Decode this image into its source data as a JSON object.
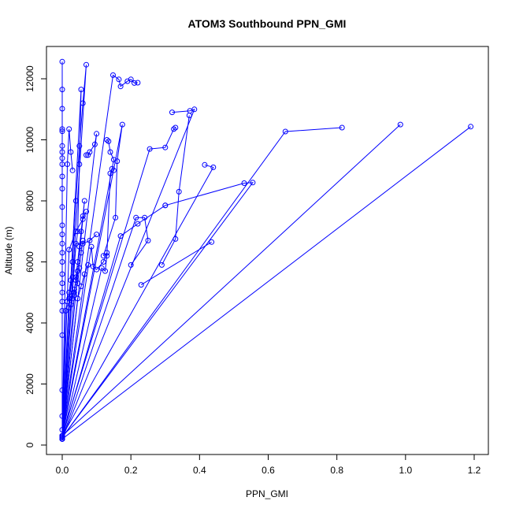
{
  "chart_data": {
    "type": "line",
    "title": "ATOM3 Southbound PPN_GMI",
    "xlabel": "PPN_GMI",
    "ylabel": "Altitude (m)",
    "xlim": [
      0.0,
      1.2
    ],
    "ylim": [
      0,
      12000
    ],
    "x_ticks": [
      "0.0",
      "0.2",
      "0.4",
      "0.6",
      "0.8",
      "1.0",
      "1.2"
    ],
    "y_ticks": [
      "0",
      "2000",
      "4000",
      "6000",
      "8000",
      "10000",
      "12000"
    ],
    "x_tick_values": [
      0.0,
      0.2,
      0.4,
      0.6,
      0.8,
      1.0,
      1.2
    ],
    "y_tick_values": [
      0,
      2000,
      4000,
      6000,
      8000,
      10000,
      12000
    ],
    "grid": false,
    "color": "#0000ff",
    "marker": "open-circle",
    "series": [
      {
        "x": [
          0.0,
          0.0,
          0.0,
          0.0,
          0.0,
          0.0,
          0.0,
          0.0,
          0.0,
          0.0,
          0.0,
          0.0,
          0.0,
          0.0,
          0.0,
          0.0,
          0.0,
          0.0,
          0.0,
          0.0,
          0.0,
          0.0,
          0.0,
          0.0,
          0.0,
          0.0,
          0.0,
          0.0
        ],
        "y": [
          12560,
          11650,
          11020,
          10350,
          10280,
          9800,
          9600,
          9400,
          9200,
          8800,
          8400,
          7800,
          7200,
          6900,
          6600,
          6300,
          6000,
          5600,
          5300,
          5000,
          4700,
          4400,
          3600,
          1800,
          950,
          500,
          300,
          200
        ]
      },
      {
        "x": [
          0.0,
          0.07,
          0.06,
          0.05,
          0.04,
          0.03,
          0.02,
          0.0
        ],
        "y": [
          200,
          12460,
          11200,
          9800,
          8000,
          6000,
          4500,
          200
        ]
      },
      {
        "x": [
          0.0,
          0.055,
          0.05,
          0.045,
          0.03,
          0.02,
          0.0
        ],
        "y": [
          250,
          11650,
          9200,
          7000,
          5500,
          4800,
          250
        ]
      },
      {
        "x": [
          0.0,
          0.148,
          0.165,
          0.17,
          0.19,
          0.2,
          0.21,
          0.22
        ],
        "y": [
          300,
          12120,
          11980,
          11750,
          11920,
          11980,
          11860,
          11870
        ]
      },
      {
        "x": [
          0.0,
          0.385,
          0.372,
          0.32
        ],
        "y": [
          200,
          11000,
          10950,
          10900
        ]
      },
      {
        "x": [
          0.0,
          0.65,
          0.815
        ],
        "y": [
          250,
          10270,
          10400
        ]
      },
      {
        "x": [
          0.0,
          0.985
        ],
        "y": [
          300,
          10500
        ]
      },
      {
        "x": [
          0.0,
          1.19
        ],
        "y": [
          200,
          10430
        ]
      },
      {
        "x": [
          0.0,
          0.44,
          0.415
        ],
        "y": [
          300,
          9100,
          9180
        ]
      },
      {
        "x": [
          0.0,
          0.555,
          0.53,
          0.3
        ],
        "y": [
          250,
          8600,
          8580,
          7850
        ]
      },
      {
        "x": [
          0.23,
          0.435
        ],
        "y": [
          5250,
          6650
        ]
      },
      {
        "x": [
          0.29,
          0.33,
          0.34,
          0.37
        ],
        "y": [
          5900,
          6750,
          8300,
          10800
        ]
      },
      {
        "x": [
          0.0,
          0.255,
          0.3,
          0.325,
          0.33
        ],
        "y": [
          300,
          9700,
          9750,
          10350,
          10400
        ]
      },
      {
        "x": [
          0.0,
          0.215,
          0.24,
          0.25,
          0.2
        ],
        "y": [
          200,
          7450,
          7450,
          6700,
          5900
        ]
      },
      {
        "x": [
          0.0,
          0.15,
          0.14,
          0.135,
          0.13
        ],
        "y": [
          300,
          9350,
          9600,
          9950,
          10000
        ]
      },
      {
        "x": [
          0.0,
          0.175,
          0.16,
          0.155,
          0.12
        ],
        "y": [
          250,
          10500,
          9300,
          7450,
          6200
        ]
      },
      {
        "x": [
          0.0,
          0.1,
          0.095,
          0.08,
          0.075,
          0.07
        ],
        "y": [
          300,
          10200,
          9850,
          9600,
          9500,
          9500
        ]
      },
      {
        "x": [
          0.0,
          0.115,
          0.125,
          0.13,
          0.14,
          0.145,
          0.15
        ],
        "y": [
          200,
          5800,
          5700,
          6200,
          8900,
          9050,
          9000
        ]
      },
      {
        "x": [
          0.0,
          0.085,
          0.09,
          0.1,
          0.12,
          0.13
        ],
        "y": [
          300,
          6500,
          5850,
          5750,
          6000,
          6300
        ]
      },
      {
        "x": [
          0.0,
          0.065,
          0.06,
          0.055,
          0.05,
          0.045,
          0.04,
          0.035
        ],
        "y": [
          250,
          8000,
          7500,
          7000,
          6500,
          6000,
          5500,
          5000
        ]
      },
      {
        "x": [
          0.0,
          0.035,
          0.045,
          0.05,
          0.055,
          0.06
        ],
        "y": [
          300,
          4900,
          5300,
          5800,
          6300,
          6700
        ]
      },
      {
        "x": [
          0.0,
          0.025,
          0.03,
          0.035,
          0.04,
          0.045
        ],
        "y": [
          200,
          4600,
          4800,
          5100,
          5400,
          5700
        ]
      },
      {
        "x": [
          0.0,
          0.015,
          0.02,
          0.025,
          0.03
        ],
        "y": [
          250,
          9200,
          10350,
          9600,
          9000
        ]
      },
      {
        "x": [
          0.0,
          0.01,
          0.015,
          0.02,
          0.025
        ],
        "y": [
          300,
          4400,
          4700,
          5000,
          5400
        ]
      },
      {
        "x": [
          0.0,
          0.17,
          0.22,
          0.3
        ],
        "y": [
          250,
          6850,
          7250,
          7850
        ]
      },
      {
        "x": [
          0.0,
          0.04,
          0.06,
          0.08,
          0.1
        ],
        "y": [
          200,
          6600,
          6600,
          6700,
          6900
        ]
      },
      {
        "x": [
          0.0,
          0.02,
          0.04,
          0.06,
          0.07
        ],
        "y": [
          300,
          6400,
          7000,
          7400,
          7650
        ]
      },
      {
        "x": [
          0.0,
          0.045,
          0.055,
          0.065,
          0.075
        ],
        "y": [
          250,
          4800,
          5200,
          5600,
          5900
        ]
      }
    ]
  }
}
